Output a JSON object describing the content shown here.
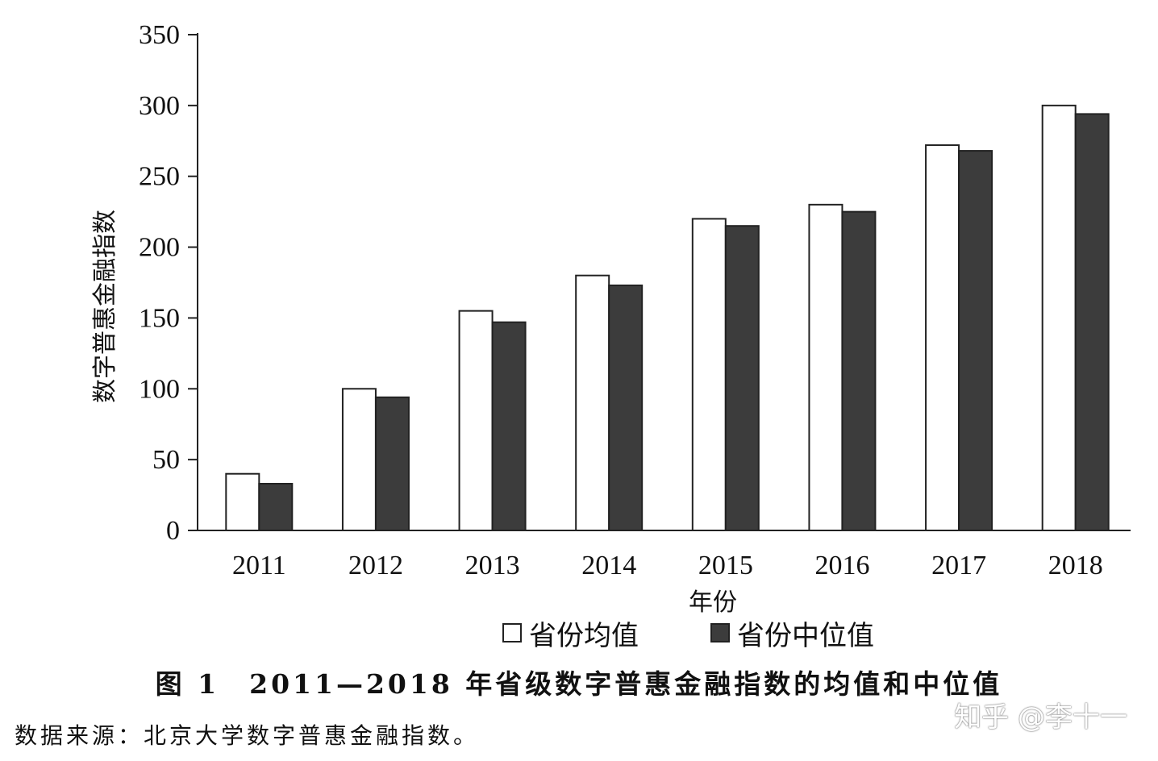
{
  "chart_data": {
    "type": "bar",
    "categories": [
      "2011",
      "2012",
      "2013",
      "2014",
      "2015",
      "2016",
      "2017",
      "2018"
    ],
    "series": [
      {
        "name": "省份均值",
        "values": [
          40,
          100,
          155,
          180,
          220,
          230,
          272,
          300
        ],
        "color": "#ffffff"
      },
      {
        "name": "省份中位值",
        "values": [
          33,
          94,
          147,
          173,
          215,
          225,
          268,
          294
        ],
        "color": "#3c3c3c"
      }
    ],
    "title": "图 1　2011—2018 年省级数字普惠金融指数的均值和中位值",
    "xlabel": "年份",
    "ylabel": "数字普惠金融指数",
    "ylim": [
      0,
      350
    ],
    "yticks": [
      "0",
      "50",
      "100",
      "150",
      "200",
      "250",
      "300",
      "350"
    ],
    "grid": false,
    "legend_position": "bottom"
  },
  "source_note": "数据来源：北京大学数字普惠金融指数。",
  "watermark": "知乎 @李十一"
}
